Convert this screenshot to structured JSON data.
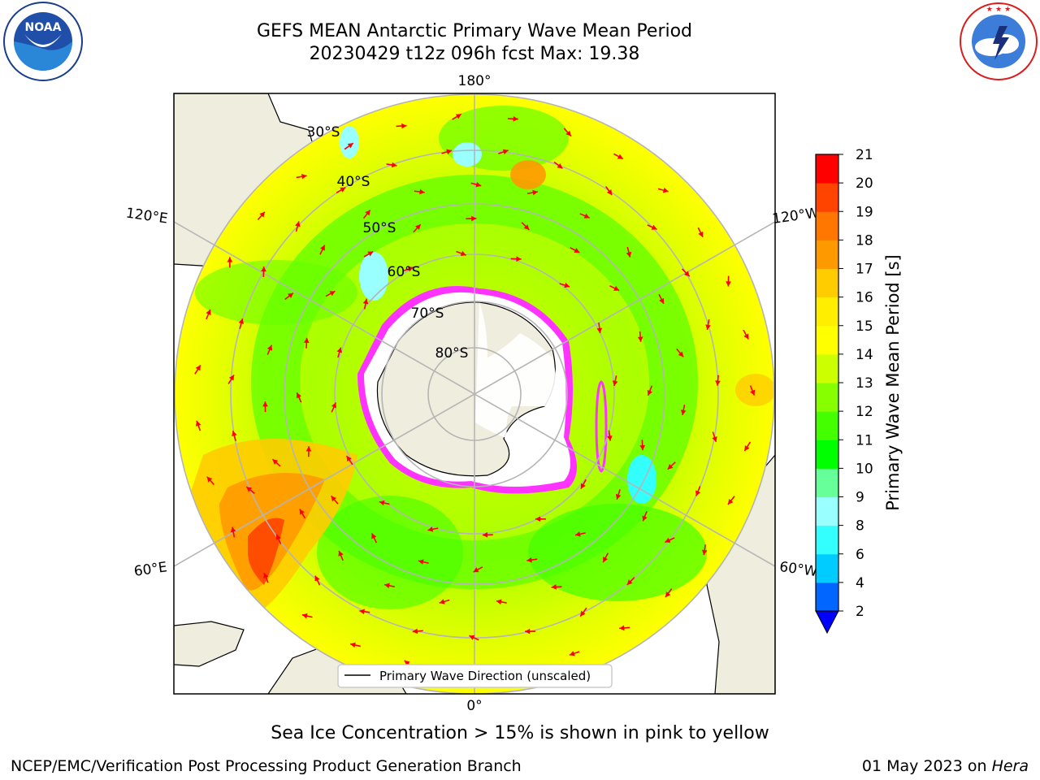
{
  "title": {
    "line1": "GEFS MEAN Antarctic Primary Wave Mean Period",
    "line2": "20230429 t12z 096h fcst   Max: 19.38"
  },
  "logos": {
    "noaa": {
      "text": "NOAA",
      "ring_text": "NATIONAL OCEANIC AND ATMOSPHERIC ADMINISTRATION · U.S. DEPARTMENT OF COMMERCE"
    },
    "nws": {
      "ring_text": "NATIONAL WEATHER SERVICE"
    }
  },
  "map": {
    "projection": "south polar stereographic",
    "longitude_labels": {
      "top": "180°",
      "bottom": "0°",
      "upper_left": "120°E",
      "upper_right": "120°W",
      "lower_left": "60°E",
      "lower_right": "60°W"
    },
    "latitude_labels": [
      "30°S",
      "40°S",
      "50°S",
      "60°S",
      "70°S",
      "80°S"
    ],
    "legend": {
      "label": "Primary Wave Direction (unscaled)"
    },
    "colors": {
      "land": "#efedde",
      "sea_ice_edge": "#ff33ff",
      "ice_inner": "#ffffff",
      "arrows": "#ff0000",
      "grid": "#b5b5b5"
    }
  },
  "colorbar": {
    "label": "Primary Wave Mean Period [s]",
    "ticks": [
      "2",
      "4",
      "6",
      "8",
      "9",
      "10",
      "11",
      "12",
      "13",
      "14",
      "15",
      "16",
      "17",
      "18",
      "19",
      "20",
      "21"
    ],
    "colors": [
      "#0066ff",
      "#00ccff",
      "#33ffff",
      "#99ffff",
      "#66ff99",
      "#00ff00",
      "#44ff00",
      "#88ff00",
      "#ccff00",
      "#ffff00",
      "#ffee00",
      "#ffcc00",
      "#ff9900",
      "#ff7700",
      "#ff4400",
      "#ff0000"
    ],
    "extend_color": "#0000ff"
  },
  "footer": {
    "ice_note": "Sea Ice Concentration > 15% is shown in pink to yellow",
    "credit": "NCEP/EMC/Verification Post Processing Product Generation Branch",
    "date": "01 May 2023 on",
    "machine": "Hera"
  }
}
